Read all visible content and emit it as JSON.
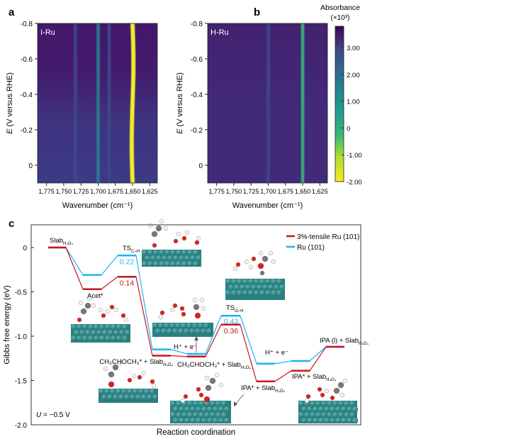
{
  "chart_data": [
    {
      "panel": "a",
      "type": "heatmap",
      "label": "I-Ru",
      "xlabel": "Wavenumber (cm⁻¹)",
      "ylabel": "E (V versus RHE)",
      "xticks": [
        "1,775",
        "1,750",
        "1,725",
        "1,700",
        "1,675",
        "1,650",
        "1,625"
      ],
      "xtick_values": [
        1775,
        1750,
        1725,
        1700,
        1675,
        1650,
        1625
      ],
      "xlim": [
        1788,
        1614
      ],
      "yticks": [
        "-0.8",
        "-0.6",
        "-0.4",
        "-0.2",
        "0"
      ],
      "ytick_values": [
        -0.8,
        -0.6,
        -0.4,
        -0.2,
        0
      ],
      "ylim": [
        -0.8,
        0.1
      ],
      "peaks": [
        {
          "wavenumber": 1700,
          "absorbance": 1.4
        },
        {
          "wavenumber": 1733,
          "absorbance": 2.8
        },
        {
          "wavenumber": 1684,
          "absorbance": 2.7
        },
        {
          "wavenumber": 1650,
          "absorbance": -2.0
        }
      ]
    },
    {
      "panel": "b",
      "type": "heatmap",
      "label": "H-Ru",
      "xlabel": "Wavenumber (cm⁻¹)",
      "ylabel": "E (V versus RHE)",
      "xticks": [
        "1,775",
        "1,750",
        "1,725",
        "1,700",
        "1,675",
        "1,650",
        "1,625"
      ],
      "xtick_values": [
        1775,
        1750,
        1725,
        1700,
        1675,
        1650,
        1625
      ],
      "xlim": [
        1788,
        1614
      ],
      "yticks": [
        "-0.8",
        "-0.6",
        "-0.4",
        "-0.2",
        "0"
      ],
      "ytick_values": [
        -0.8,
        -0.6,
        -0.4,
        -0.2,
        0
      ],
      "ylim": [
        -0.8,
        0.1
      ],
      "peaks": [
        {
          "wavenumber": 1700,
          "absorbance": 2.2
        },
        {
          "wavenumber": 1650,
          "absorbance": 0.2
        }
      ],
      "colorbar": {
        "title": "Absorbance",
        "unit": "(×10³)",
        "ticks": [
          "3.00",
          "2.00",
          "1.00",
          "0",
          "-1.00",
          "-2.00"
        ],
        "tick_values": [
          3,
          2,
          1,
          0,
          -1,
          -2
        ],
        "range": [
          -2.0,
          3.8
        ],
        "colormap": "viridis (reversed)"
      }
    },
    {
      "panel": "c",
      "type": "line",
      "subtype": "energy profile",
      "xlabel": "Reaction coordination",
      "ylabel": "Gibbs free energy (eV)",
      "yticks": [
        "0",
        "-0.5",
        "-1.0",
        "-1.5",
        "-2.0"
      ],
      "ytick_values": [
        0,
        -0.5,
        -1.0,
        -1.5,
        -2.0
      ],
      "ylim": [
        -2.0,
        0.27
      ],
      "legend_position": "top-right",
      "potential_label": "U = −0.5 V",
      "series": [
        {
          "name": "3%-tensile Ru (101)",
          "color": "#c8161d",
          "values": [
            0,
            -0.47,
            -0.33,
            -1.22,
            -1.23,
            -0.87,
            -1.51,
            -1.39,
            -1.12
          ]
        },
        {
          "name": "Ru (101)",
          "color": "#1ab6ee",
          "values": [
            0,
            -0.31,
            -0.09,
            -1.15,
            -1.2,
            -0.77,
            -1.31,
            -1.28,
            -1.12
          ]
        }
      ],
      "barriers": [
        {
          "label": "0.22",
          "color": "#1ab6ee"
        },
        {
          "label": "0.14",
          "color": "#c8161d"
        },
        {
          "label": "0.43",
          "color": "#1ab6ee"
        },
        {
          "label": "0.36",
          "color": "#c8161d"
        }
      ],
      "annotations": {
        "slab": "Slab",
        "slab_sub": "H₄O₄",
        "acet": "Acet*",
        "ts_ch": "TS",
        "ts_ch_sub": "C–H",
        "ts_oh": "TS",
        "ts_oh_sub": "O–H",
        "int1": "CH₃CHOCH₃* + Slab",
        "int2": "CH₃CHOCH₃* + Slab",
        "he1": "H⁺ + e⁻",
        "he2": "H⁺ + e⁻",
        "ipa1": "IPA* + Slab",
        "ipa2": "IPA* + Slab",
        "ipal": "IPA (l) + Slab"
      }
    }
  ],
  "panel_letters": [
    "a",
    "b",
    "c"
  ]
}
